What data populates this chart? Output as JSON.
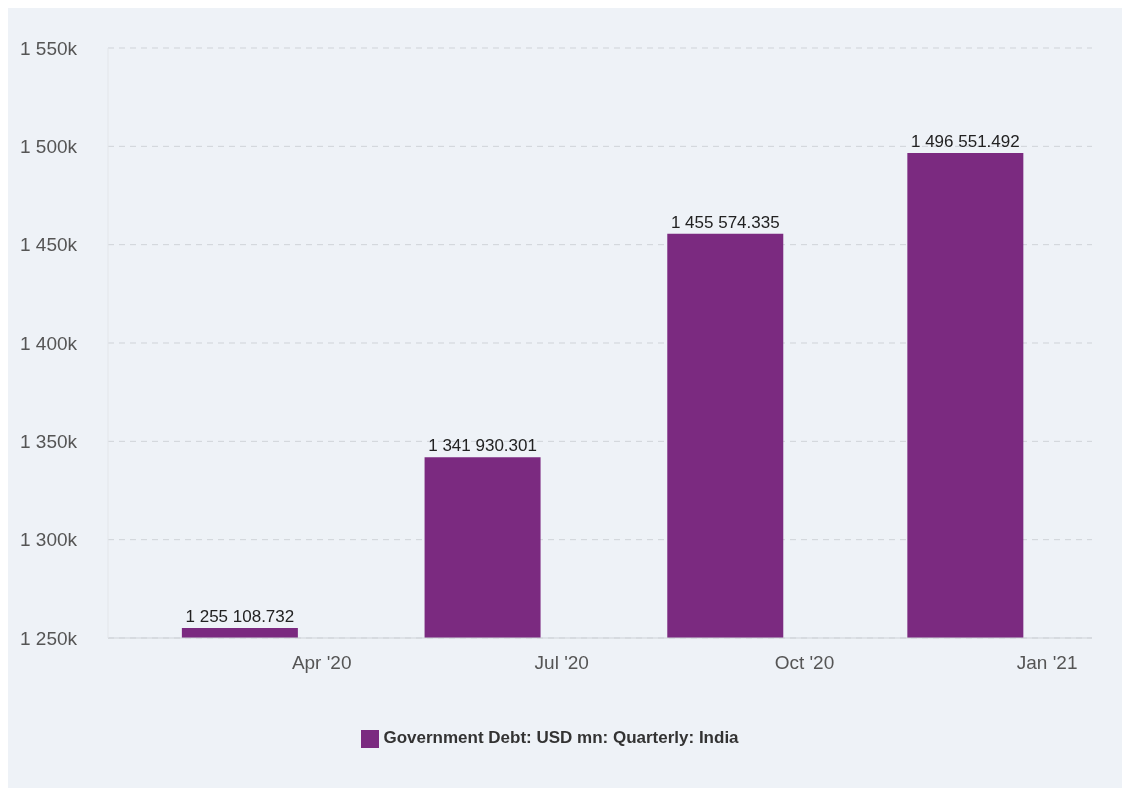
{
  "chart_data": {
    "type": "bar",
    "x": [
      "2020-03",
      "2020-06",
      "2020-09",
      "2020-12"
    ],
    "series": [
      {
        "name": "Government Debt: USD mn: Quarterly: India",
        "color": "#7b2a80",
        "values": [
          1255108.732,
          1341930.301,
          1455574.335,
          1496551.492
        ],
        "value_labels": [
          "1 255 108.732",
          "1 341 930.301",
          "1 455 574.335",
          "1 496 551.492"
        ]
      }
    ],
    "xlim": [
      "2020-01-11",
      "2021-01-18"
    ],
    "xticks": [
      {
        "value": "2020-04",
        "label": "Apr '20"
      },
      {
        "value": "2020-07",
        "label": "Jul '20"
      },
      {
        "value": "2020-10",
        "label": "Oct '20"
      },
      {
        "value": "2021-01",
        "label": "Jan '21"
      }
    ],
    "ylim": [
      1250000,
      1550000
    ],
    "yticks": [
      {
        "value": 1250000,
        "label": "1 250k"
      },
      {
        "value": 1300000,
        "label": "1 300k"
      },
      {
        "value": 1350000,
        "label": "1 350k"
      },
      {
        "value": 1400000,
        "label": "1 400k"
      },
      {
        "value": 1450000,
        "label": "1 450k"
      },
      {
        "value": 1500000,
        "label": "1 500k"
      },
      {
        "value": 1550000,
        "label": "1 550k"
      }
    ],
    "grid": "y",
    "legend": "bottom"
  }
}
